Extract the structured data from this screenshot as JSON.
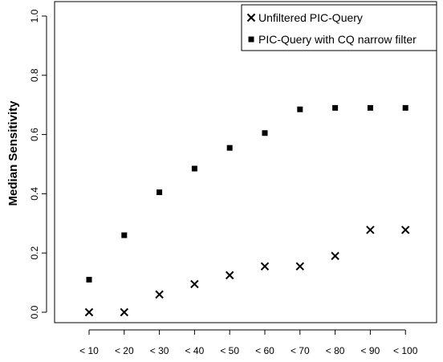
{
  "chart_data": {
    "type": "scatter",
    "title": "",
    "xlabel": "",
    "ylabel": "Median  Sensitivity",
    "categories": [
      "< 10",
      "< 20",
      "< 30",
      "< 40",
      "< 50",
      "< 60",
      "< 70",
      "< 80",
      "< 90",
      "< 100"
    ],
    "ylim": [
      0,
      1
    ],
    "yticks": [
      "0.0",
      "0.2",
      "0.4",
      "0.6",
      "0.8",
      "1.0"
    ],
    "grid": false,
    "legend_position": "top-right",
    "series": [
      {
        "name": "Unfiltered PIC-Query",
        "marker": "cross",
        "color": "#000000",
        "values": [
          0.0,
          0.0,
          0.06,
          0.095,
          0.125,
          0.155,
          0.155,
          0.19,
          0.278,
          0.278
        ]
      },
      {
        "name": "PIC-Query with CQ narrow filter",
        "marker": "square",
        "color": "#000000",
        "values": [
          0.11,
          0.26,
          0.405,
          0.485,
          0.555,
          0.605,
          0.685,
          0.69,
          0.69,
          0.69
        ]
      }
    ]
  }
}
